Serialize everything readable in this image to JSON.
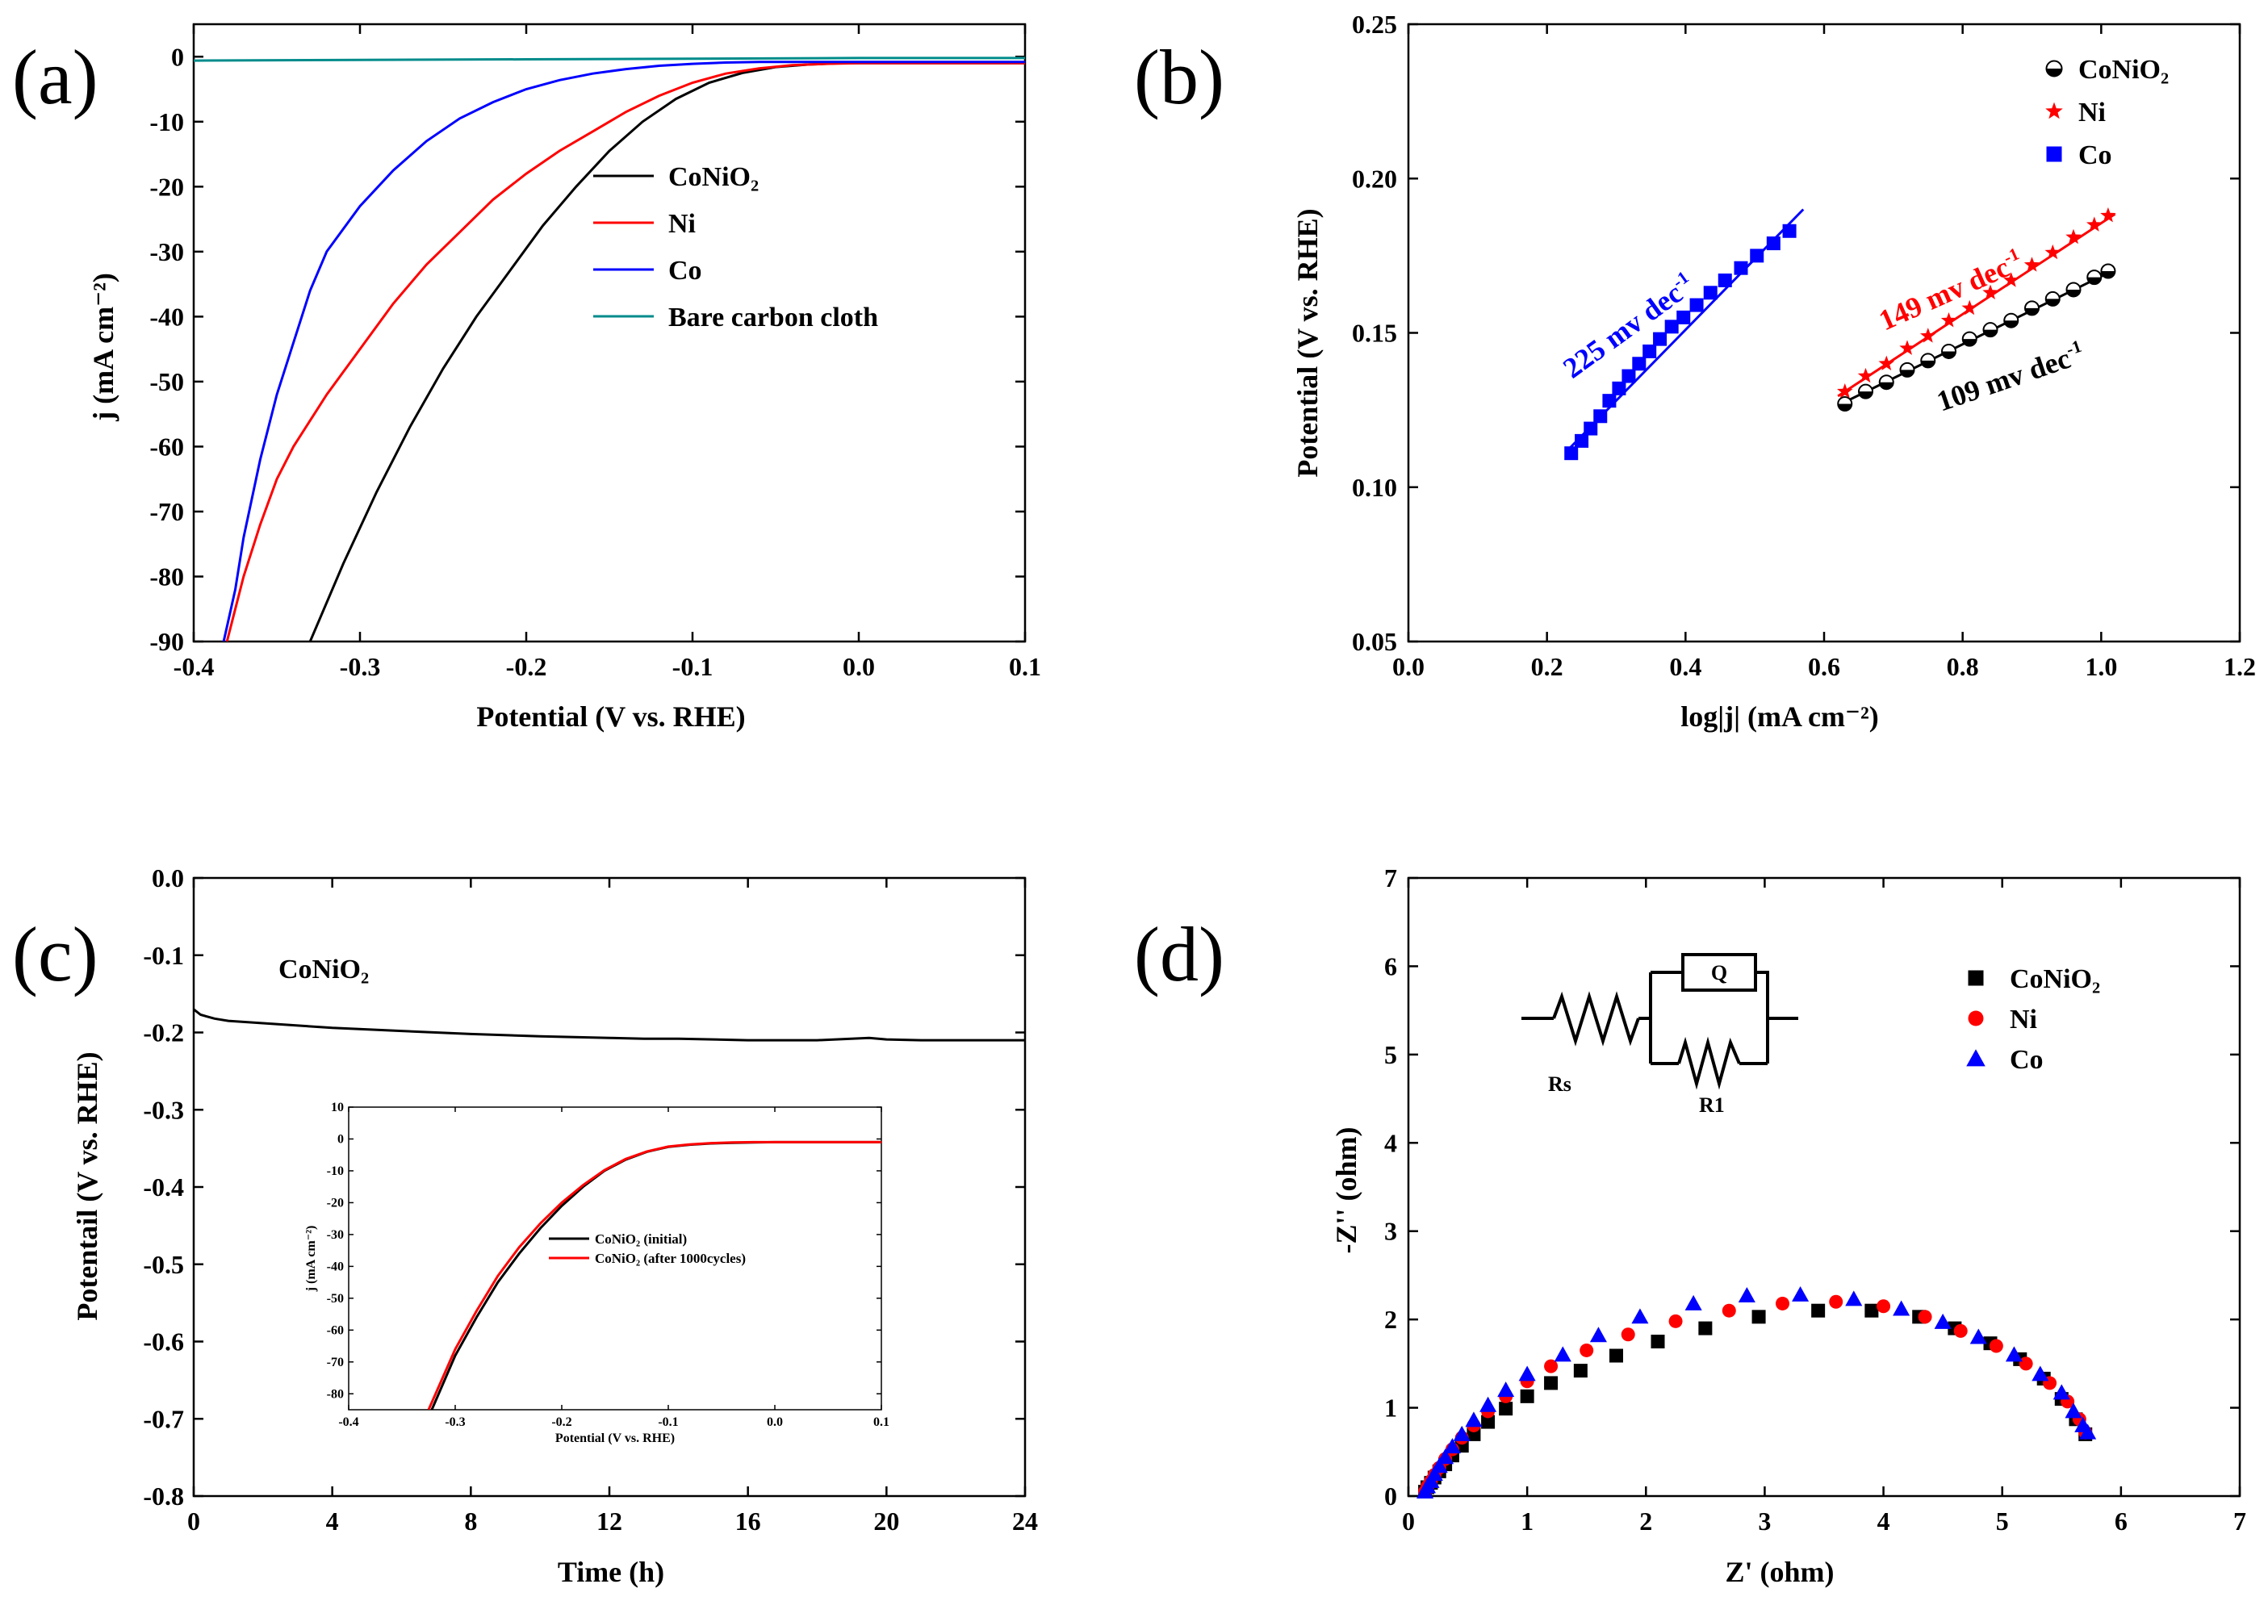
{
  "chart_data": [
    {
      "panel": "(a)",
      "type": "line",
      "xlabel": "Potential (V vs. RHE)",
      "ylabel": "j (mA cm⁻²)",
      "xlim": [
        -0.4,
        0.1
      ],
      "ylim": [
        -90,
        5
      ],
      "xticks": [
        -0.4,
        -0.3,
        -0.2,
        -0.1,
        0.0,
        0.1
      ],
      "yticks": [
        0,
        -10,
        -20,
        -30,
        -40,
        -50,
        -60,
        -70,
        -80,
        -90
      ],
      "legend_position": "center-right",
      "series": [
        {
          "name": "CoNiO₂",
          "color": "#000000",
          "x": [
            -0.33,
            -0.31,
            -0.29,
            -0.27,
            -0.25,
            -0.23,
            -0.21,
            -0.19,
            -0.17,
            -0.15,
            -0.13,
            -0.11,
            -0.09,
            -0.07,
            -0.05,
            -0.03,
            -0.01,
            0.02,
            0.05,
            0.1
          ],
          "y": [
            -90,
            -78,
            -67,
            -57,
            -48,
            -40,
            -33,
            -26,
            -20,
            -14.5,
            -10,
            -6.5,
            -4,
            -2.5,
            -1.6,
            -1.2,
            -1.0,
            -1.0,
            -1.0,
            -1.0
          ]
        },
        {
          "name": "Ni",
          "color": "#ff0000",
          "x": [
            -0.38,
            -0.37,
            -0.36,
            -0.35,
            -0.34,
            -0.32,
            -0.3,
            -0.28,
            -0.26,
            -0.24,
            -0.22,
            -0.2,
            -0.18,
            -0.16,
            -0.14,
            -0.12,
            -0.1,
            -0.08,
            -0.06,
            -0.04,
            -0.02,
            0.0,
            0.05,
            0.1
          ],
          "y": [
            -90,
            -80,
            -72,
            -65,
            -60,
            -52,
            -45,
            -38,
            -32,
            -27,
            -22,
            -18,
            -14.5,
            -11.5,
            -8.5,
            -6,
            -4,
            -2.6,
            -1.8,
            -1.3,
            -1.1,
            -1.0,
            -1.0,
            -1.0
          ]
        },
        {
          "name": "Co",
          "color": "#0000ff",
          "x": [
            -0.382,
            -0.375,
            -0.37,
            -0.36,
            -0.35,
            -0.34,
            -0.33,
            -0.32,
            -0.3,
            -0.28,
            -0.26,
            -0.24,
            -0.22,
            -0.2,
            -0.18,
            -0.16,
            -0.14,
            -0.12,
            -0.1,
            -0.08,
            -0.06,
            -0.04,
            -0.02,
            0.0,
            0.05,
            0.1
          ],
          "y": [
            -90,
            -82,
            -74,
            -62,
            -52,
            -44,
            -36,
            -30,
            -23,
            -17.5,
            -13,
            -9.5,
            -7,
            -5,
            -3.6,
            -2.6,
            -1.9,
            -1.4,
            -1.1,
            -0.9,
            -0.8,
            -0.8,
            -0.8,
            -0.8,
            -0.8,
            -0.8
          ]
        },
        {
          "name": "Bare carbon cloth",
          "color": "#008b8b",
          "x": [
            -0.4,
            -0.3,
            -0.2,
            -0.1,
            0.0,
            0.1
          ],
          "y": [
            -0.6,
            -0.5,
            -0.4,
            -0.3,
            -0.2,
            -0.2
          ]
        }
      ]
    },
    {
      "panel": "(b)",
      "type": "scatter",
      "xlabel": "log|j| (mA cm⁻²)",
      "ylabel": "Potential (V vs. RHE)",
      "xlim": [
        0.0,
        1.2
      ],
      "ylim": [
        0.05,
        0.25
      ],
      "xticks": [
        0.0,
        0.2,
        0.4,
        0.6,
        0.8,
        1.0,
        1.2
      ],
      "yticks": [
        0.05,
        0.1,
        0.15,
        0.2,
        0.25
      ],
      "legend_position": "top-right",
      "series": [
        {
          "name": "CoNiO₂",
          "color": "#000000",
          "marker": "circle",
          "x": [
            0.63,
            0.66,
            0.69,
            0.72,
            0.75,
            0.78,
            0.81,
            0.84,
            0.87,
            0.9,
            0.93,
            0.96,
            0.99,
            1.01
          ],
          "y": [
            0.127,
            0.131,
            0.134,
            0.138,
            0.141,
            0.144,
            0.148,
            0.151,
            0.154,
            0.158,
            0.161,
            0.164,
            0.168,
            0.17
          ]
        },
        {
          "name": "Ni",
          "color": "#ff0000",
          "marker": "star",
          "x": [
            0.63,
            0.66,
            0.69,
            0.72,
            0.75,
            0.78,
            0.81,
            0.84,
            0.87,
            0.9,
            0.93,
            0.96,
            0.99,
            1.01
          ],
          "y": [
            0.131,
            0.136,
            0.14,
            0.145,
            0.149,
            0.154,
            0.158,
            0.163,
            0.167,
            0.172,
            0.176,
            0.181,
            0.185,
            0.188
          ]
        },
        {
          "name": "Co",
          "color": "#0000ff",
          "marker": "square",
          "x": [
            0.235,
            0.25,
            0.263,
            0.277,
            0.29,
            0.304,
            0.318,
            0.333,
            0.348,
            0.363,
            0.38,
            0.397,
            0.416,
            0.436,
            0.457,
            0.48,
            0.503,
            0.527,
            0.55
          ],
          "y": [
            0.111,
            0.115,
            0.119,
            0.123,
            0.128,
            0.132,
            0.136,
            0.14,
            0.144,
            0.148,
            0.152,
            0.155,
            0.159,
            0.163,
            0.167,
            0.171,
            0.175,
            0.179,
            0.183
          ]
        }
      ],
      "fit_lines": [
        {
          "color": "#000000",
          "x": [
            0.62,
            1.02
          ],
          "y": [
            0.1265,
            0.1705
          ]
        },
        {
          "color": "#ff0000",
          "x": [
            0.62,
            1.02
          ],
          "y": [
            0.1295,
            0.1885
          ]
        },
        {
          "color": "#0000ff",
          "x": [
            0.23,
            0.57
          ],
          "y": [
            0.112,
            0.19
          ]
        }
      ],
      "annotations": [
        {
          "text": "225 mv dec",
          "sup": "-1",
          "color": "#0000ff"
        },
        {
          "text": "149 mv dec",
          "sup": "-1",
          "color": "#ff0000"
        },
        {
          "text": "109 mv dec",
          "sup": "-1",
          "color": "#000000"
        }
      ]
    },
    {
      "panel": "(c)",
      "type": "line",
      "xlabel": "Time (h)",
      "ylabel": "Potentail (V vs. RHE)",
      "xlim": [
        0,
        24
      ],
      "ylim": [
        -0.8,
        0.0
      ],
      "xticks": [
        0,
        4,
        8,
        12,
        16,
        20,
        24
      ],
      "yticks": [
        0.0,
        -0.1,
        -0.2,
        -0.3,
        -0.4,
        -0.5,
        -0.6,
        -0.7,
        -0.8
      ],
      "annotation": "CoNiO₂",
      "series": [
        {
          "name": "CoNiO₂",
          "color": "#000000",
          "x": [
            0,
            0.2,
            0.6,
            1,
            2,
            3,
            4,
            6,
            8,
            10,
            12,
            13,
            14,
            16,
            18,
            19.5,
            20,
            21,
            22,
            24
          ],
          "y": [
            -0.17,
            -0.177,
            -0.182,
            -0.185,
            -0.188,
            -0.191,
            -0.194,
            -0.198,
            -0.202,
            -0.205,
            -0.207,
            -0.208,
            -0.208,
            -0.21,
            -0.21,
            -0.207,
            -0.209,
            -0.21,
            -0.21,
            -0.21
          ]
        }
      ],
      "inset": {
        "type": "line",
        "xlabel": "Potential (V vs. RHE)",
        "ylabel": "j (mA cm⁻²)",
        "xlim": [
          -0.4,
          0.1
        ],
        "ylim": [
          -85,
          10
        ],
        "xticks": [
          -0.4,
          -0.3,
          -0.2,
          -0.1,
          0.0,
          0.1
        ],
        "yticks": [
          10,
          0,
          -10,
          -20,
          -30,
          -40,
          -50,
          -60,
          -70,
          -80
        ],
        "legend_position": "center-right",
        "series": [
          {
            "name": "CoNiO₂ (initial)",
            "color": "#000000",
            "x": [
              -0.322,
              -0.3,
              -0.28,
              -0.26,
              -0.24,
              -0.22,
              -0.2,
              -0.18,
              -0.16,
              -0.14,
              -0.12,
              -0.1,
              -0.08,
              -0.06,
              -0.04,
              -0.02,
              0.0,
              0.05,
              0.1
            ],
            "y": [
              -85,
              -68,
              -56,
              -45,
              -36,
              -28,
              -21,
              -15,
              -10,
              -6.5,
              -4,
              -2.5,
              -1.8,
              -1.4,
              -1.2,
              -1.1,
              -1.0,
              -1.0,
              -1.0
            ]
          },
          {
            "name": "CoNiO₂ (after 1000cycles)",
            "color": "#ff0000",
            "x": [
              -0.325,
              -0.3,
              -0.28,
              -0.26,
              -0.24,
              -0.22,
              -0.2,
              -0.18,
              -0.16,
              -0.14,
              -0.12,
              -0.1,
              -0.08,
              -0.06,
              -0.04,
              -0.02,
              0.0,
              0.05,
              0.1
            ],
            "y": [
              -85,
              -66,
              -54,
              -43,
              -34,
              -26.5,
              -20,
              -14.5,
              -9.8,
              -6.3,
              -3.9,
              -2.4,
              -1.7,
              -1.3,
              -1.1,
              -1.0,
              -1.0,
              -1.0,
              -1.0
            ]
          }
        ]
      }
    },
    {
      "panel": "(d)",
      "type": "scatter",
      "xlabel": "Z' (ohm)",
      "ylabel": "-Z'' (ohm)",
      "xlim": [
        0,
        7
      ],
      "ylim": [
        0,
        7
      ],
      "xticks": [
        0,
        1,
        2,
        3,
        4,
        5,
        6,
        7
      ],
      "yticks": [
        0,
        1,
        2,
        3,
        4,
        5,
        6,
        7
      ],
      "legend_position": "top-right",
      "circuit_labels": {
        "rs": "Rs",
        "r1": "R1",
        "q": "Q"
      },
      "series": [
        {
          "name": "CoNiO₂",
          "color": "#000000",
          "marker": "square",
          "x": [
            0.14,
            0.16,
            0.19,
            0.22,
            0.26,
            0.31,
            0.37,
            0.45,
            0.55,
            0.67,
            0.82,
            1.0,
            1.2,
            1.45,
            1.75,
            2.1,
            2.5,
            2.95,
            3.45,
            3.9,
            4.3,
            4.6,
            4.9,
            5.15,
            5.35,
            5.5,
            5.62,
            5.7
          ],
          "y": [
            0.05,
            0.1,
            0.15,
            0.21,
            0.28,
            0.36,
            0.46,
            0.57,
            0.7,
            0.84,
            0.99,
            1.13,
            1.28,
            1.42,
            1.59,
            1.75,
            1.9,
            2.03,
            2.1,
            2.1,
            2.03,
            1.9,
            1.73,
            1.55,
            1.33,
            1.1,
            0.87,
            0.7
          ]
        },
        {
          "name": "Ni",
          "color": "#ff0000",
          "marker": "circle",
          "x": [
            0.14,
            0.16,
            0.19,
            0.22,
            0.26,
            0.31,
            0.37,
            0.45,
            0.55,
            0.67,
            0.82,
            1.0,
            1.2,
            1.5,
            1.85,
            2.25,
            2.7,
            3.15,
            3.6,
            4.0,
            4.35,
            4.65,
            4.95,
            5.2,
            5.4,
            5.55,
            5.65,
            5.7
          ],
          "y": [
            0.05,
            0.11,
            0.17,
            0.24,
            0.32,
            0.42,
            0.53,
            0.66,
            0.8,
            0.96,
            1.13,
            1.3,
            1.47,
            1.65,
            1.83,
            1.98,
            2.1,
            2.18,
            2.2,
            2.15,
            2.03,
            1.87,
            1.7,
            1.5,
            1.28,
            1.07,
            0.87,
            0.72
          ]
        },
        {
          "name": "Co",
          "color": "#0000ff",
          "marker": "triangle",
          "x": [
            0.14,
            0.16,
            0.19,
            0.22,
            0.26,
            0.31,
            0.37,
            0.45,
            0.55,
            0.67,
            0.82,
            1.0,
            1.3,
            1.6,
            1.95,
            2.4,
            2.85,
            3.3,
            3.75,
            4.15,
            4.5,
            4.8,
            5.1,
            5.32,
            5.5,
            5.6,
            5.68,
            5.72
          ],
          "y": [
            0.05,
            0.11,
            0.17,
            0.25,
            0.34,
            0.44,
            0.56,
            0.7,
            0.86,
            1.03,
            1.2,
            1.38,
            1.6,
            1.82,
            2.03,
            2.18,
            2.27,
            2.28,
            2.23,
            2.12,
            1.97,
            1.8,
            1.6,
            1.38,
            1.17,
            0.96,
            0.8,
            0.72
          ]
        }
      ]
    }
  ]
}
